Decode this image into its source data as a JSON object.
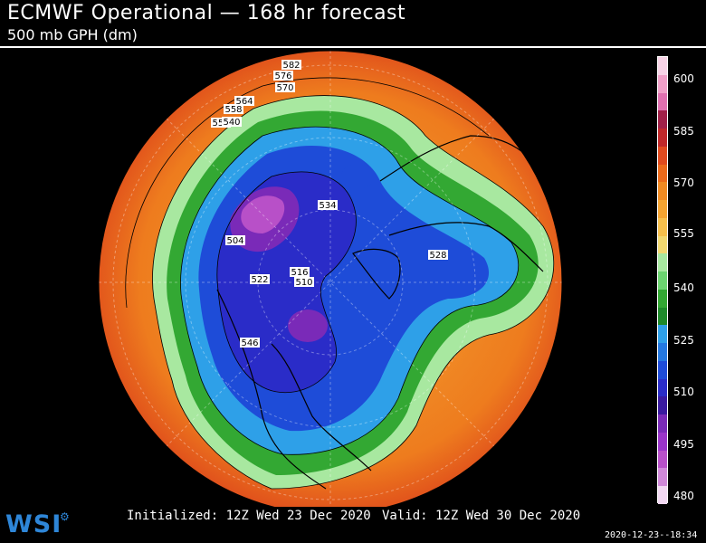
{
  "header": {
    "title": "ECMWF Operational — 168 hr forecast",
    "subtitle": "500 mb GPH (dm)"
  },
  "colorbar": {
    "ticks": [
      "600",
      "585",
      "570",
      "555",
      "540",
      "525",
      "510",
      "495",
      "480"
    ],
    "colors": [
      "#f7d3e6",
      "#f0a0c8",
      "#e070b0",
      "#a02048",
      "#c0282a",
      "#e04a1e",
      "#ec6a1a",
      "#f08a22",
      "#f4a432",
      "#f6bf4c",
      "#f2d870",
      "#a8e8a0",
      "#6cd470",
      "#33a833",
      "#1e8a2a",
      "#2ea0e8",
      "#2478e0",
      "#1e4cd8",
      "#2a2cc8",
      "#3a1aa0",
      "#7a2ab8",
      "#9a34c8",
      "#b850c8",
      "#d088d8",
      "#f2d8f2"
    ]
  },
  "contour_labels": [
    "582",
    "576",
    "570",
    "564",
    "558",
    "552",
    "546",
    "540",
    "534",
    "528",
    "522",
    "516",
    "510",
    "504"
  ],
  "footer": {
    "initialized": "Initialized: 12Z Wed 23 Dec 2020",
    "valid": "Valid: 12Z Wed 30 Dec 2020",
    "logo": "WSI",
    "timestamp": "2020-12-23--18:34"
  }
}
